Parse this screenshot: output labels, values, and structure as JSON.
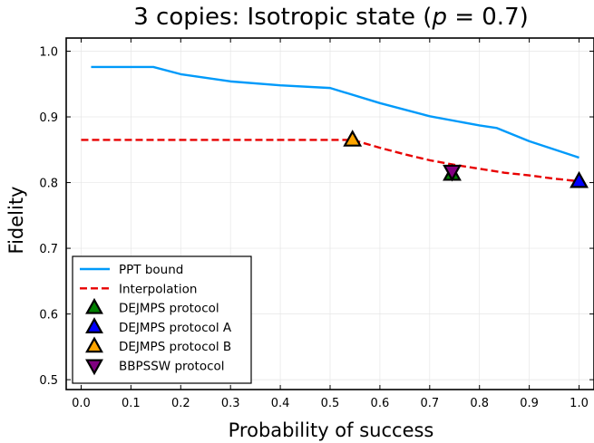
{
  "chart_data": {
    "type": "line",
    "title_parts": [
      "3 copies: Isotropic state (",
      "p",
      " = 0.7)"
    ],
    "xlabel": "Probability of success",
    "ylabel": "Fidelity",
    "xlim": [
      -0.03,
      1.03
    ],
    "ylim": [
      0.485,
      1.02
    ],
    "xticks": [
      0.0,
      0.1,
      0.2,
      0.3,
      0.4,
      0.5,
      0.6,
      0.7,
      0.8,
      0.9,
      1.0
    ],
    "xtick_labels": [
      "0.0",
      "0.1",
      "0.2",
      "0.3",
      "0.4",
      "0.5",
      "0.6",
      "0.7",
      "0.8",
      "0.9",
      "1.0"
    ],
    "yticks": [
      0.5,
      0.6,
      0.7,
      0.8,
      0.9,
      1.0
    ],
    "ytick_labels": [
      "0.5",
      "0.6",
      "0.7",
      "0.8",
      "0.9",
      "1.0"
    ],
    "grid": true,
    "legend_position": "bottom-left",
    "series": [
      {
        "name": "PPT bound",
        "kind": "line",
        "color": "#009AFA",
        "dash": "solid",
        "x": [
          0.02,
          0.145,
          0.2,
          0.3,
          0.4,
          0.5,
          0.6,
          0.7,
          0.8,
          0.835,
          0.9,
          1.0
        ],
        "y": [
          0.976,
          0.976,
          0.965,
          0.954,
          0.948,
          0.944,
          0.921,
          0.901,
          0.887,
          0.883,
          0.863,
          0.838
        ]
      },
      {
        "name": "Interpolation",
        "kind": "line",
        "color": "#E80000",
        "dash": "dashed",
        "x": [
          0.0,
          0.545,
          0.6,
          0.65,
          0.7,
          0.75,
          0.8,
          0.85,
          0.9,
          0.95,
          1.0
        ],
        "y": [
          0.865,
          0.865,
          0.853,
          0.843,
          0.834,
          0.827,
          0.821,
          0.815,
          0.811,
          0.806,
          0.802
        ]
      },
      {
        "name": "DEJMPS protocol",
        "kind": "marker",
        "marker": "triangle-up",
        "color": "#008000",
        "x": [
          0.745
        ],
        "y": [
          0.813
        ]
      },
      {
        "name": "DEJMPS protocol A",
        "kind": "marker",
        "marker": "triangle-up",
        "color": "#0000FF",
        "x": [
          1.0
        ],
        "y": [
          0.802
        ]
      },
      {
        "name": "DEJMPS protocol B",
        "kind": "marker",
        "marker": "triangle-up",
        "color": "#FFA500",
        "x": [
          0.545
        ],
        "y": [
          0.865
        ]
      },
      {
        "name": "BBPSSW protocol",
        "kind": "marker",
        "marker": "triangle-down",
        "color": "#800080",
        "x": [
          0.745
        ],
        "y": [
          0.817
        ]
      }
    ]
  }
}
